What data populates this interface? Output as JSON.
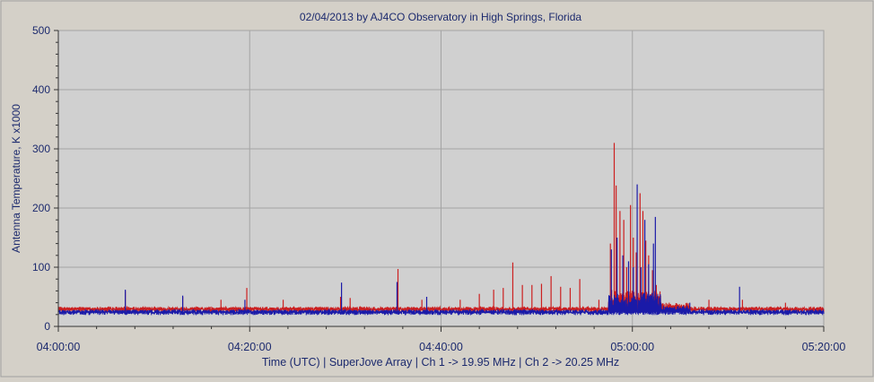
{
  "chart_data": {
    "type": "line",
    "title": "02/04/2013  by  AJ4CO Observatory  in  High Springs, Florida",
    "ylabel": "Antenna Temperature, K x1000",
    "xlabel": "Time (UTC)  |  SuperJove Array  |  Ch 1 -> 19.95 MHz  |  Ch 2 -> 20.25 MHz",
    "ylim": [
      0,
      500
    ],
    "xlim_minutes": [
      0,
      80
    ],
    "yticks": [
      0,
      100,
      200,
      300,
      400,
      500
    ],
    "ytick_labels": [
      "0",
      "100",
      "200",
      "300",
      "400",
      "500"
    ],
    "xticks_minutes": [
      0,
      20,
      40,
      60,
      80
    ],
    "xtick_labels": [
      "04:00:00",
      "04:20:00",
      "04:40:00",
      "05:00:00",
      "05:20:00"
    ],
    "grid": true,
    "series": [
      {
        "name": "Ch 1 -> 19.95 MHz",
        "color": "#cc1f1f",
        "baseline": 30,
        "noise": 3,
        "spikes": [
          [
            7,
            60
          ],
          [
            13,
            50
          ],
          [
            17,
            45
          ],
          [
            19.7,
            65
          ],
          [
            23.5,
            45
          ],
          [
            29.5,
            50
          ],
          [
            30.5,
            48
          ],
          [
            35.5,
            97
          ],
          [
            38,
            45
          ],
          [
            42,
            45
          ],
          [
            44,
            55
          ],
          [
            45.5,
            62
          ],
          [
            46.5,
            65
          ],
          [
            47.5,
            108
          ],
          [
            48.5,
            70
          ],
          [
            49.5,
            70
          ],
          [
            50.5,
            72
          ],
          [
            51.5,
            85
          ],
          [
            52.5,
            67
          ],
          [
            53.5,
            65
          ],
          [
            54.5,
            80
          ],
          [
            56.5,
            45
          ],
          [
            57.7,
            140
          ],
          [
            58.1,
            310
          ],
          [
            58.3,
            238
          ],
          [
            58.7,
            195
          ],
          [
            59.1,
            180
          ],
          [
            59.4,
            100
          ],
          [
            59.8,
            205
          ],
          [
            60.1,
            150
          ],
          [
            60.4,
            125
          ],
          [
            60.8,
            225
          ],
          [
            61.1,
            195
          ],
          [
            61.4,
            145
          ],
          [
            61.7,
            120
          ],
          [
            62.1,
            95
          ],
          [
            62.5,
            70
          ],
          [
            68,
            45
          ],
          [
            71.5,
            45
          ],
          [
            76,
            40
          ]
        ]
      },
      {
        "name": "Ch 2 -> 20.25 MHz",
        "color": "#1a1aa8",
        "baseline": 25,
        "noise": 3,
        "spikes": [
          [
            7,
            62
          ],
          [
            13,
            52
          ],
          [
            19.5,
            45
          ],
          [
            29.6,
            74
          ],
          [
            35.4,
            75
          ],
          [
            38.5,
            50
          ],
          [
            57.8,
            130
          ],
          [
            58.4,
            150
          ],
          [
            59,
            120
          ],
          [
            59.6,
            110
          ],
          [
            60.1,
            100
          ],
          [
            60.5,
            240
          ],
          [
            60.9,
            100
          ],
          [
            61.3,
            180
          ],
          [
            61.7,
            105
          ],
          [
            62.2,
            140
          ],
          [
            62.4,
            185
          ],
          [
            66,
            40
          ],
          [
            71.2,
            67
          ]
        ]
      }
    ]
  }
}
